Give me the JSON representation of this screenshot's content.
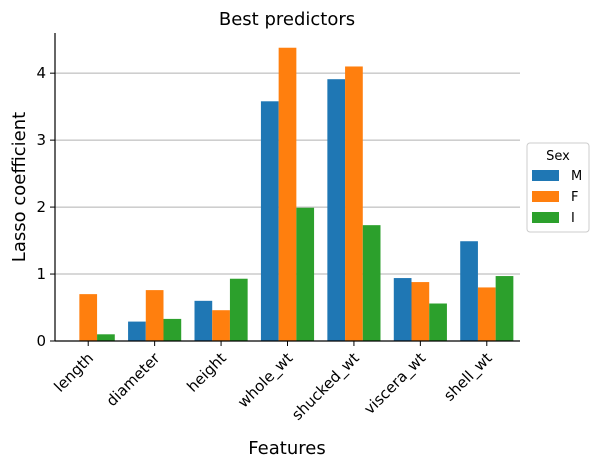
{
  "chart_data": {
    "type": "bar",
    "title": "Best predictors",
    "xlabel": "Features",
    "ylabel": "Lasso coefficient",
    "categories": [
      "length",
      "diameter",
      "height",
      "whole_wt",
      "shucked_wt",
      "viscera_wt",
      "shell_wt"
    ],
    "series": [
      {
        "name": "M",
        "color": "#1f77b4",
        "values": [
          0.0,
          0.29,
          0.6,
          3.58,
          3.91,
          0.94,
          1.49
        ]
      },
      {
        "name": "F",
        "color": "#ff7f0e",
        "values": [
          0.7,
          0.76,
          0.46,
          4.38,
          4.1,
          0.88,
          0.8
        ]
      },
      {
        "name": "I",
        "color": "#2ca02c",
        "values": [
          0.1,
          0.33,
          0.93,
          1.99,
          1.73,
          0.56,
          0.97
        ]
      }
    ],
    "ylim": [
      0,
      4.6
    ],
    "yticks": [
      0,
      1,
      2,
      3,
      4
    ],
    "grid": "y",
    "legend": {
      "title": "Sex",
      "position": "right"
    }
  }
}
